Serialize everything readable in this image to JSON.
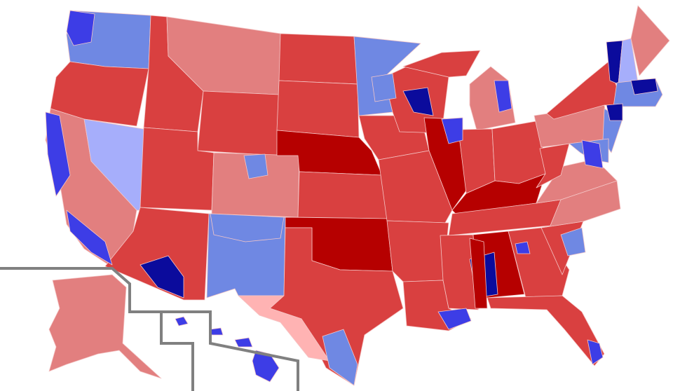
{
  "palette": {
    "safe_d": "#0b0b9c",
    "likely_d": "#3d3de6",
    "lean_d": "#6f88e3",
    "tilt_d": "#a6aefb",
    "tilt_r": "#ffb3b3",
    "lean_r": "#e27f7f",
    "likely_r": "#d94040",
    "safe_r": "#b60000",
    "inset_border": "#808080",
    "background": "#ffffff"
  },
  "fills": {
    "washington": "lean_d",
    "oregon": "likely_r",
    "california": "lean_r",
    "nevada": "tilt_d",
    "idaho": "likely_r",
    "montana": "lean_r",
    "wyoming": "likely_r",
    "utah": "likely_r",
    "colorado": "lean_r",
    "arizona": "likely_r",
    "new_mexico": "lean_d",
    "north_dakota": "likely_r",
    "south_dakota": "likely_r",
    "nebraska": "safe_r",
    "kansas": "likely_r",
    "oklahoma": "safe_r",
    "texas": "likely_r",
    "texas_west": "tilt_r",
    "minnesota": "lean_d",
    "iowa": "likely_r",
    "missouri": "likely_r",
    "arkansas": "likely_r",
    "louisiana": "likely_r",
    "wisconsin": "likely_r",
    "illinois": "safe_r",
    "michigan_upper": "likely_r",
    "michigan_lower": "lean_r",
    "indiana": "likely_r",
    "ohio": "likely_r",
    "kentucky": "safe_r",
    "tennessee": "likely_r",
    "mississippi": "likely_r",
    "alabama": "safe_r",
    "georgia": "likely_r",
    "florida": "likely_r",
    "south_carolina": "likely_r",
    "north_carolina": "lean_r",
    "virginia": "lean_r",
    "west_virginia": "likely_r",
    "pennsylvania": "lean_r",
    "new_york": "likely_r",
    "vermont": "safe_d",
    "new_hampshire": "tilt_d",
    "maine": "lean_r",
    "southern_new_england": "lean_d",
    "new_jersey": "lean_d",
    "maryland_delaware": "lean_d",
    "alaska": "lean_r",
    "hawaii": "likely_d",
    "metro_seattle": "likely_d",
    "metro_bay_area": "likely_d",
    "metro_la": "likely_d",
    "metro_phoenix": "safe_d",
    "metro_denver": "lean_d",
    "metro_minneapolis": "lean_d",
    "metro_madison": "safe_d",
    "metro_chicago": "likely_d",
    "metro_detroit": "likely_d",
    "metro_atlanta": "likely_d",
    "metro_mississippi_delta": "safe_d",
    "metro_houston": "lean_d",
    "metro_south_florida": "likely_d",
    "metro_dc": "likely_d",
    "metro_nyc": "safe_d",
    "metro_boston": "safe_d",
    "metro_albuquerque": "lean_d",
    "metro_charlotte": "lean_d",
    "metro_memphis_la": "safe_r",
    "metro_new_orleans": "likely_d"
  }
}
